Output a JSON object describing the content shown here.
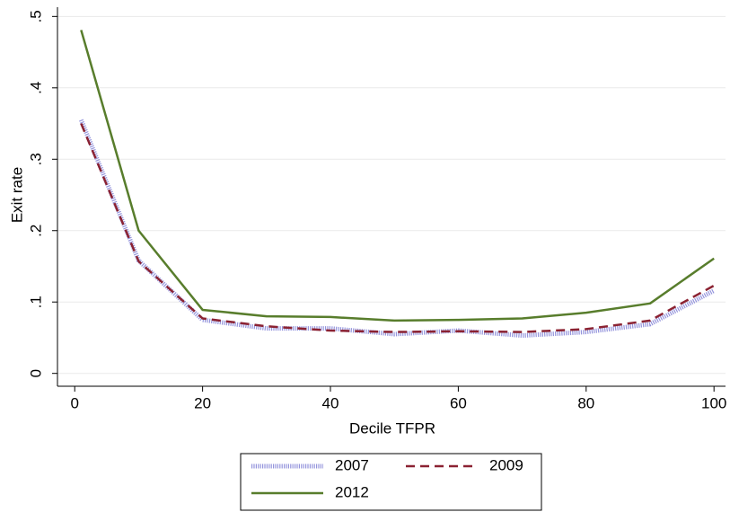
{
  "chart_data": {
    "type": "line",
    "x_label": "Decile TFPR",
    "y_label": "Exit rate",
    "x": [
      1,
      10,
      20,
      30,
      40,
      50,
      60,
      70,
      80,
      90,
      100
    ],
    "series": [
      {
        "name": "2007",
        "color": "#9494dc",
        "values": [
          0.355,
          0.158,
          0.075,
          0.063,
          0.063,
          0.055,
          0.06,
          0.053,
          0.058,
          0.069,
          0.116
        ]
      },
      {
        "name": "2009",
        "color": "#8b2232",
        "values": [
          0.35,
          0.157,
          0.077,
          0.066,
          0.06,
          0.058,
          0.059,
          0.058,
          0.062,
          0.074,
          0.123
        ]
      },
      {
        "name": "2012",
        "color": "#587d2c",
        "values": [
          0.481,
          0.2,
          0.089,
          0.08,
          0.079,
          0.074,
          0.075,
          0.077,
          0.085,
          0.098,
          0.161
        ]
      }
    ],
    "xlim": [
      -2.7,
      101.8
    ],
    "xticks": [
      0,
      20,
      40,
      60,
      80,
      100
    ],
    "ylim": [
      -0.018,
      0.513
    ],
    "yticks": [
      0,
      {
        "value": 0.1,
        "label": ".1"
      },
      {
        "value": 0.2,
        "label": ".2"
      },
      {
        "value": 0.3,
        "label": ".3"
      },
      {
        "value": 0.4,
        "label": ".4"
      },
      {
        "value": 0.5,
        "label": ".5"
      }
    ],
    "grid": true,
    "legend": "bottom"
  }
}
